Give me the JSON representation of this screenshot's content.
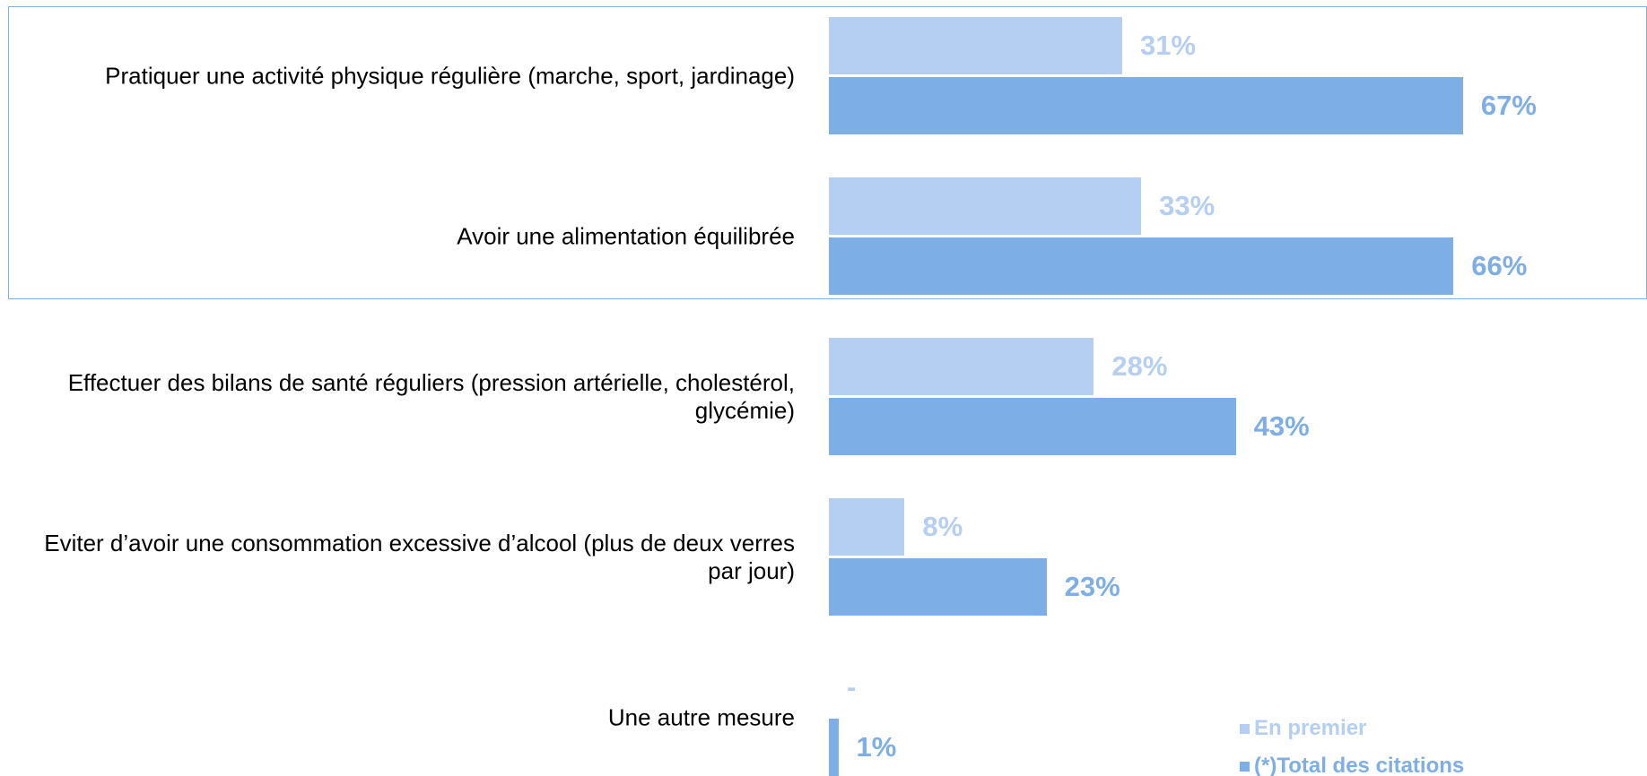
{
  "chart_data": {
    "type": "bar",
    "orientation": "horizontal",
    "categories": [
      "Pratiquer une activité physique régulière (marche, sport, jardinage)",
      "Avoir une alimentation équilibrée",
      "Effectuer des bilans de santé réguliers (pression artérielle, cholestérol, glycémie)",
      "Eviter d’avoir une consommation excessive d’alcool (plus de deux verres par jour)",
      "Une autre mesure"
    ],
    "series": [
      {
        "name": "En premier",
        "color": "#b4cff2",
        "values": [
          31,
          33,
          28,
          8,
          0
        ],
        "value_labels": [
          "31%",
          "33%",
          "28%",
          "8%",
          "-"
        ]
      },
      {
        "name": "(*)Total des citations",
        "color": "#7eaee6",
        "values": [
          67,
          66,
          43,
          23,
          1
        ],
        "value_labels": [
          "67%",
          "66%",
          "43%",
          "23%",
          "1%"
        ]
      }
    ],
    "xlim": [
      0,
      100
    ],
    "legend": "bottom-right"
  }
}
